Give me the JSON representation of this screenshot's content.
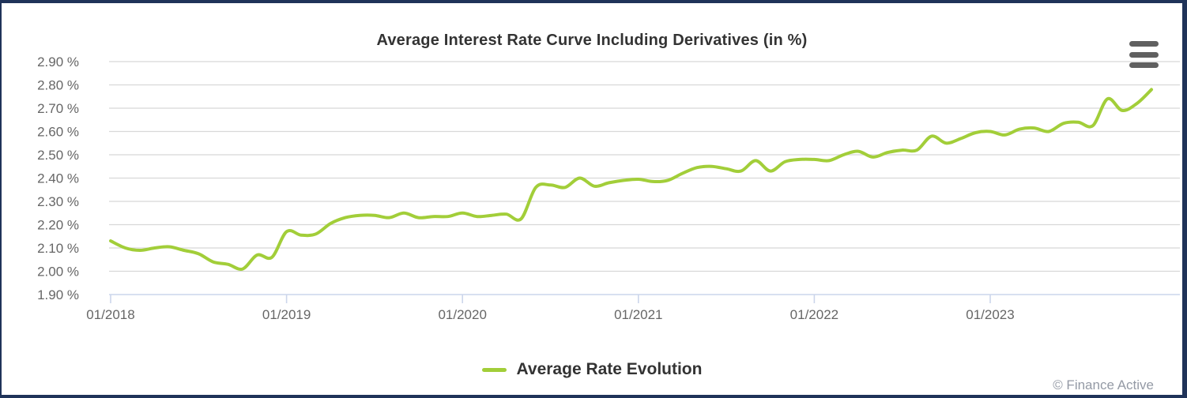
{
  "panel": {
    "border_color": "#1f3359",
    "background_color": "#ffffff"
  },
  "header": {
    "title": "Average Interest Rate Curve Including Derivatives (in %)",
    "title_color": "#333333",
    "menu_icon": "hamburger-icon",
    "menu_icon_color": "#606060"
  },
  "legend": {
    "items": [
      {
        "label": "Average Rate Evolution",
        "color": "#a2ce39"
      }
    ],
    "text_color": "#333333",
    "position": "bottom"
  },
  "footer": {
    "credit": "© Finance Active",
    "color": "#949aa5"
  },
  "chart_data": {
    "type": "line",
    "title": "Average Interest Rate Curve Including Derivatives (in %)",
    "xlabel": "",
    "ylabel": "",
    "unit": "%",
    "ylim": [
      1.9,
      2.9
    ],
    "y_step": 0.1,
    "grid": true,
    "grid_color": "#d8d8d8",
    "axis_color": "#ccd6eb",
    "tick_label_color": "#666666",
    "y_tick_labels": [
      "2.90 %",
      "2.80 %",
      "2.70 %",
      "2.60 %",
      "2.50 %",
      "2.40 %",
      "2.30 %",
      "2.20 %",
      "2.10 %",
      "2.00 %",
      "1.90 %"
    ],
    "y_ticks": [
      2.9,
      2.8,
      2.7,
      2.6,
      2.5,
      2.4,
      2.3,
      2.2,
      2.1,
      2.0,
      1.9
    ],
    "x_ticks": [
      {
        "label": "01/2018",
        "month_index": 0
      },
      {
        "label": "01/2019",
        "month_index": 12
      },
      {
        "label": "01/2020",
        "month_index": 24
      },
      {
        "label": "01/2021",
        "month_index": 36
      },
      {
        "label": "01/2022",
        "month_index": 48
      },
      {
        "label": "01/2023",
        "month_index": 60
      }
    ],
    "legend_position": "bottom",
    "series": [
      {
        "name": "Average Rate Evolution",
        "color": "#a2ce39",
        "line_width": 4,
        "dates": [
          "01/2018",
          "02/2018",
          "03/2018",
          "04/2018",
          "05/2018",
          "06/2018",
          "07/2018",
          "08/2018",
          "09/2018",
          "10/2018",
          "11/2018",
          "12/2018",
          "01/2019",
          "02/2019",
          "03/2019",
          "04/2019",
          "05/2019",
          "06/2019",
          "07/2019",
          "08/2019",
          "09/2019",
          "10/2019",
          "11/2019",
          "12/2019",
          "01/2020",
          "02/2020",
          "03/2020",
          "04/2020",
          "05/2020",
          "06/2020",
          "07/2020",
          "08/2020",
          "09/2020",
          "10/2020",
          "11/2020",
          "12/2020",
          "01/2021",
          "02/2021",
          "03/2021",
          "04/2021",
          "05/2021",
          "06/2021",
          "07/2021",
          "08/2021",
          "09/2021",
          "10/2021",
          "11/2021",
          "12/2021",
          "01/2022",
          "02/2022",
          "03/2022",
          "04/2022",
          "05/2022",
          "06/2022",
          "07/2022",
          "08/2022",
          "09/2022",
          "10/2022",
          "11/2022",
          "12/2022",
          "01/2023",
          "02/2023",
          "03/2023",
          "04/2023",
          "05/2023",
          "06/2023",
          "07/2023",
          "08/2023",
          "09/2023",
          "10/2023",
          "11/2023",
          "12/2023"
        ],
        "values": [
          2.13,
          2.1,
          2.09,
          2.1,
          2.105,
          2.09,
          2.075,
          2.04,
          2.03,
          2.01,
          2.07,
          2.06,
          2.17,
          2.155,
          2.16,
          2.205,
          2.23,
          2.24,
          2.24,
          2.23,
          2.25,
          2.23,
          2.235,
          2.235,
          2.25,
          2.235,
          2.24,
          2.245,
          2.225,
          2.36,
          2.37,
          2.36,
          2.4,
          2.365,
          2.38,
          2.39,
          2.395,
          2.385,
          2.39,
          2.42,
          2.445,
          2.45,
          2.44,
          2.43,
          2.475,
          2.43,
          2.47,
          2.48,
          2.48,
          2.475,
          2.5,
          2.515,
          2.49,
          2.51,
          2.52,
          2.52,
          2.58,
          2.55,
          2.57,
          2.595,
          2.6,
          2.585,
          2.61,
          2.615,
          2.6,
          2.635,
          2.64,
          2.625,
          2.74,
          2.69,
          2.72,
          2.78
        ]
      }
    ]
  }
}
